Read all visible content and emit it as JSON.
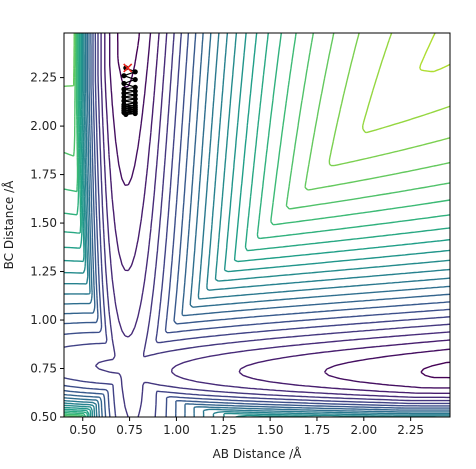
{
  "chart_data": {
    "type": "contour",
    "title": "",
    "xlabel": "AB Distance /Å",
    "ylabel": "BC Distance /Å",
    "xlim": [
      0.4,
      2.46
    ],
    "ylim": [
      0.5,
      2.48
    ],
    "xticks": [
      0.5,
      0.75,
      1.0,
      1.25,
      1.5,
      1.75,
      2.0,
      2.25
    ],
    "xtick_labels": [
      "0.50",
      "0.75",
      "1.00",
      "1.25",
      "1.50",
      "1.75",
      "2.00",
      "2.25"
    ],
    "yticks": [
      0.5,
      0.75,
      1.0,
      1.25,
      1.5,
      1.75,
      2.0,
      2.25
    ],
    "ytick_labels": [
      "0.50",
      "0.75",
      "1.00",
      "1.25",
      "1.50",
      "1.75",
      "2.00",
      "2.25"
    ],
    "grid": false,
    "colormap": "viridis",
    "contour_levels": 26,
    "surface": {
      "description_model": "two-Morse (LEPS-like) potential energy surface for A+BC",
      "well_depth": 1.0,
      "morse_a": 2.4,
      "r_eq": 0.74,
      "asymptote_split": 0.01
    },
    "trajectory": {
      "color": "#000000",
      "marker": "o",
      "x": [
        0.73,
        0.78,
        0.72,
        0.78,
        0.72,
        0.78,
        0.72,
        0.78,
        0.72,
        0.78,
        0.72,
        0.78,
        0.72,
        0.78,
        0.72,
        0.78,
        0.72,
        0.78,
        0.72,
        0.78,
        0.72,
        0.78,
        0.72,
        0.78,
        0.73
      ],
      "y": [
        2.3,
        2.28,
        2.26,
        2.24,
        2.22,
        2.2,
        2.19,
        2.18,
        2.17,
        2.16,
        2.15,
        2.14,
        2.13,
        2.12,
        2.11,
        2.105,
        2.1,
        2.095,
        2.09,
        2.085,
        2.08,
        2.075,
        2.07,
        2.065,
        2.06
      ]
    },
    "start_marker": {
      "x": 0.74,
      "y": 2.3,
      "marker": "x",
      "color": "#e8231b"
    }
  }
}
